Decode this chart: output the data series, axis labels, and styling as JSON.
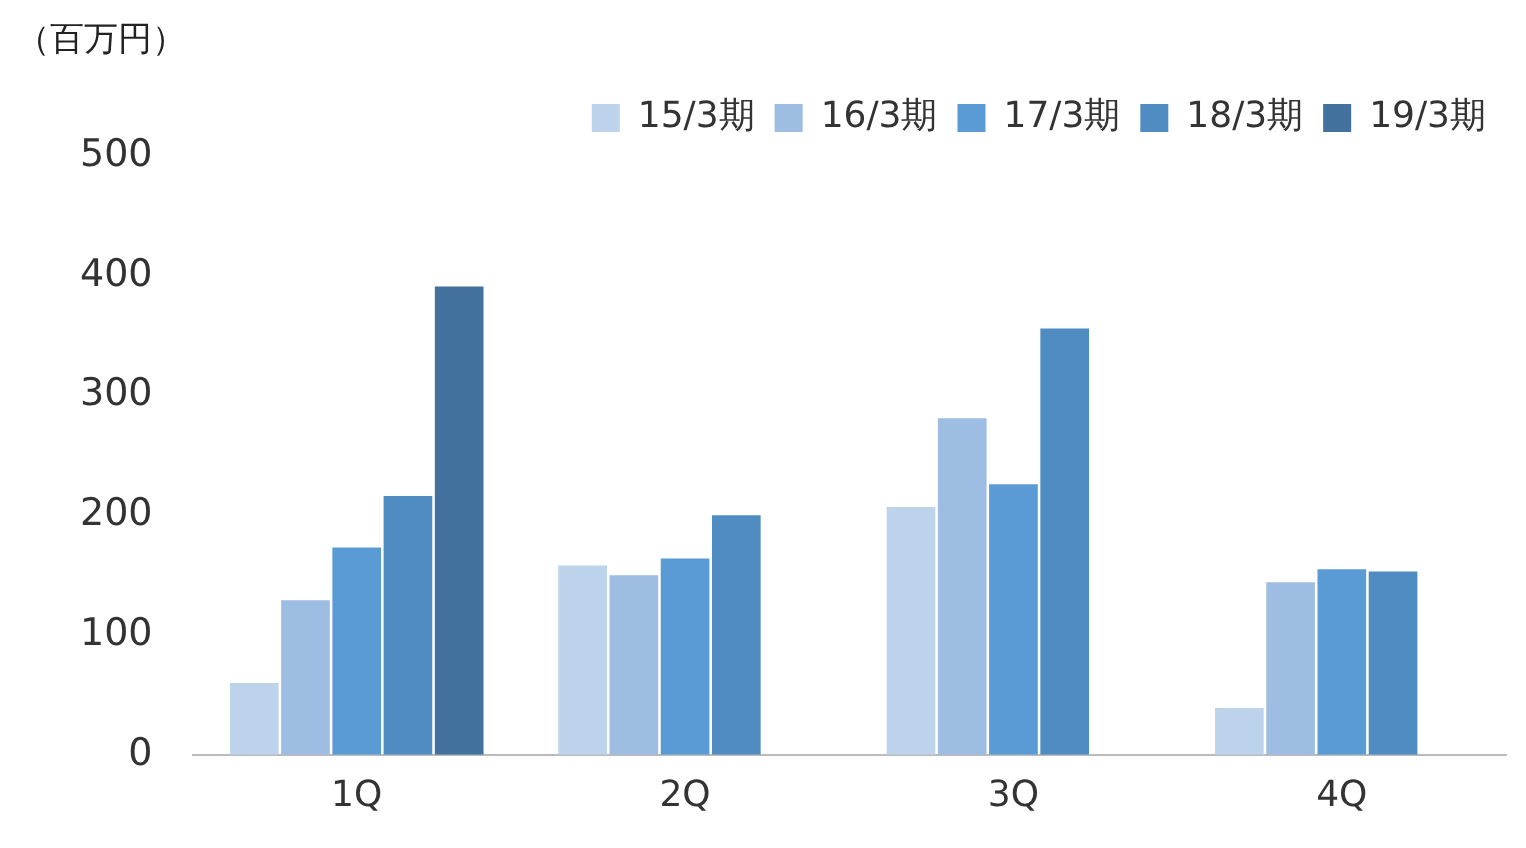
{
  "chart_data": {
    "type": "bar",
    "ylabel": "（百万円）",
    "categories": [
      "1Q",
      "2Q",
      "3Q",
      "4Q"
    ],
    "series": [
      {
        "name": "15/3期",
        "color": "#bdd3ec",
        "values": [
          60,
          158,
          207,
          39
        ]
      },
      {
        "name": "16/3期",
        "color": "#9dbde3",
        "values": [
          129,
          150,
          281,
          144
        ]
      },
      {
        "name": "17/3期",
        "color": "#5b9bd5",
        "values": [
          173,
          164,
          226,
          155
        ]
      },
      {
        "name": "18/3期",
        "color": "#4e8cc2",
        "values": [
          216,
          200,
          356,
          153
        ]
      },
      {
        "name": "19/3期",
        "color": "#41719c",
        "values": [
          391,
          null,
          null,
          null
        ]
      }
    ],
    "ylim": [
      0,
      500
    ],
    "yticks": [
      0,
      100,
      200,
      300,
      400,
      500
    ],
    "grid": false,
    "legend": "top right"
  }
}
